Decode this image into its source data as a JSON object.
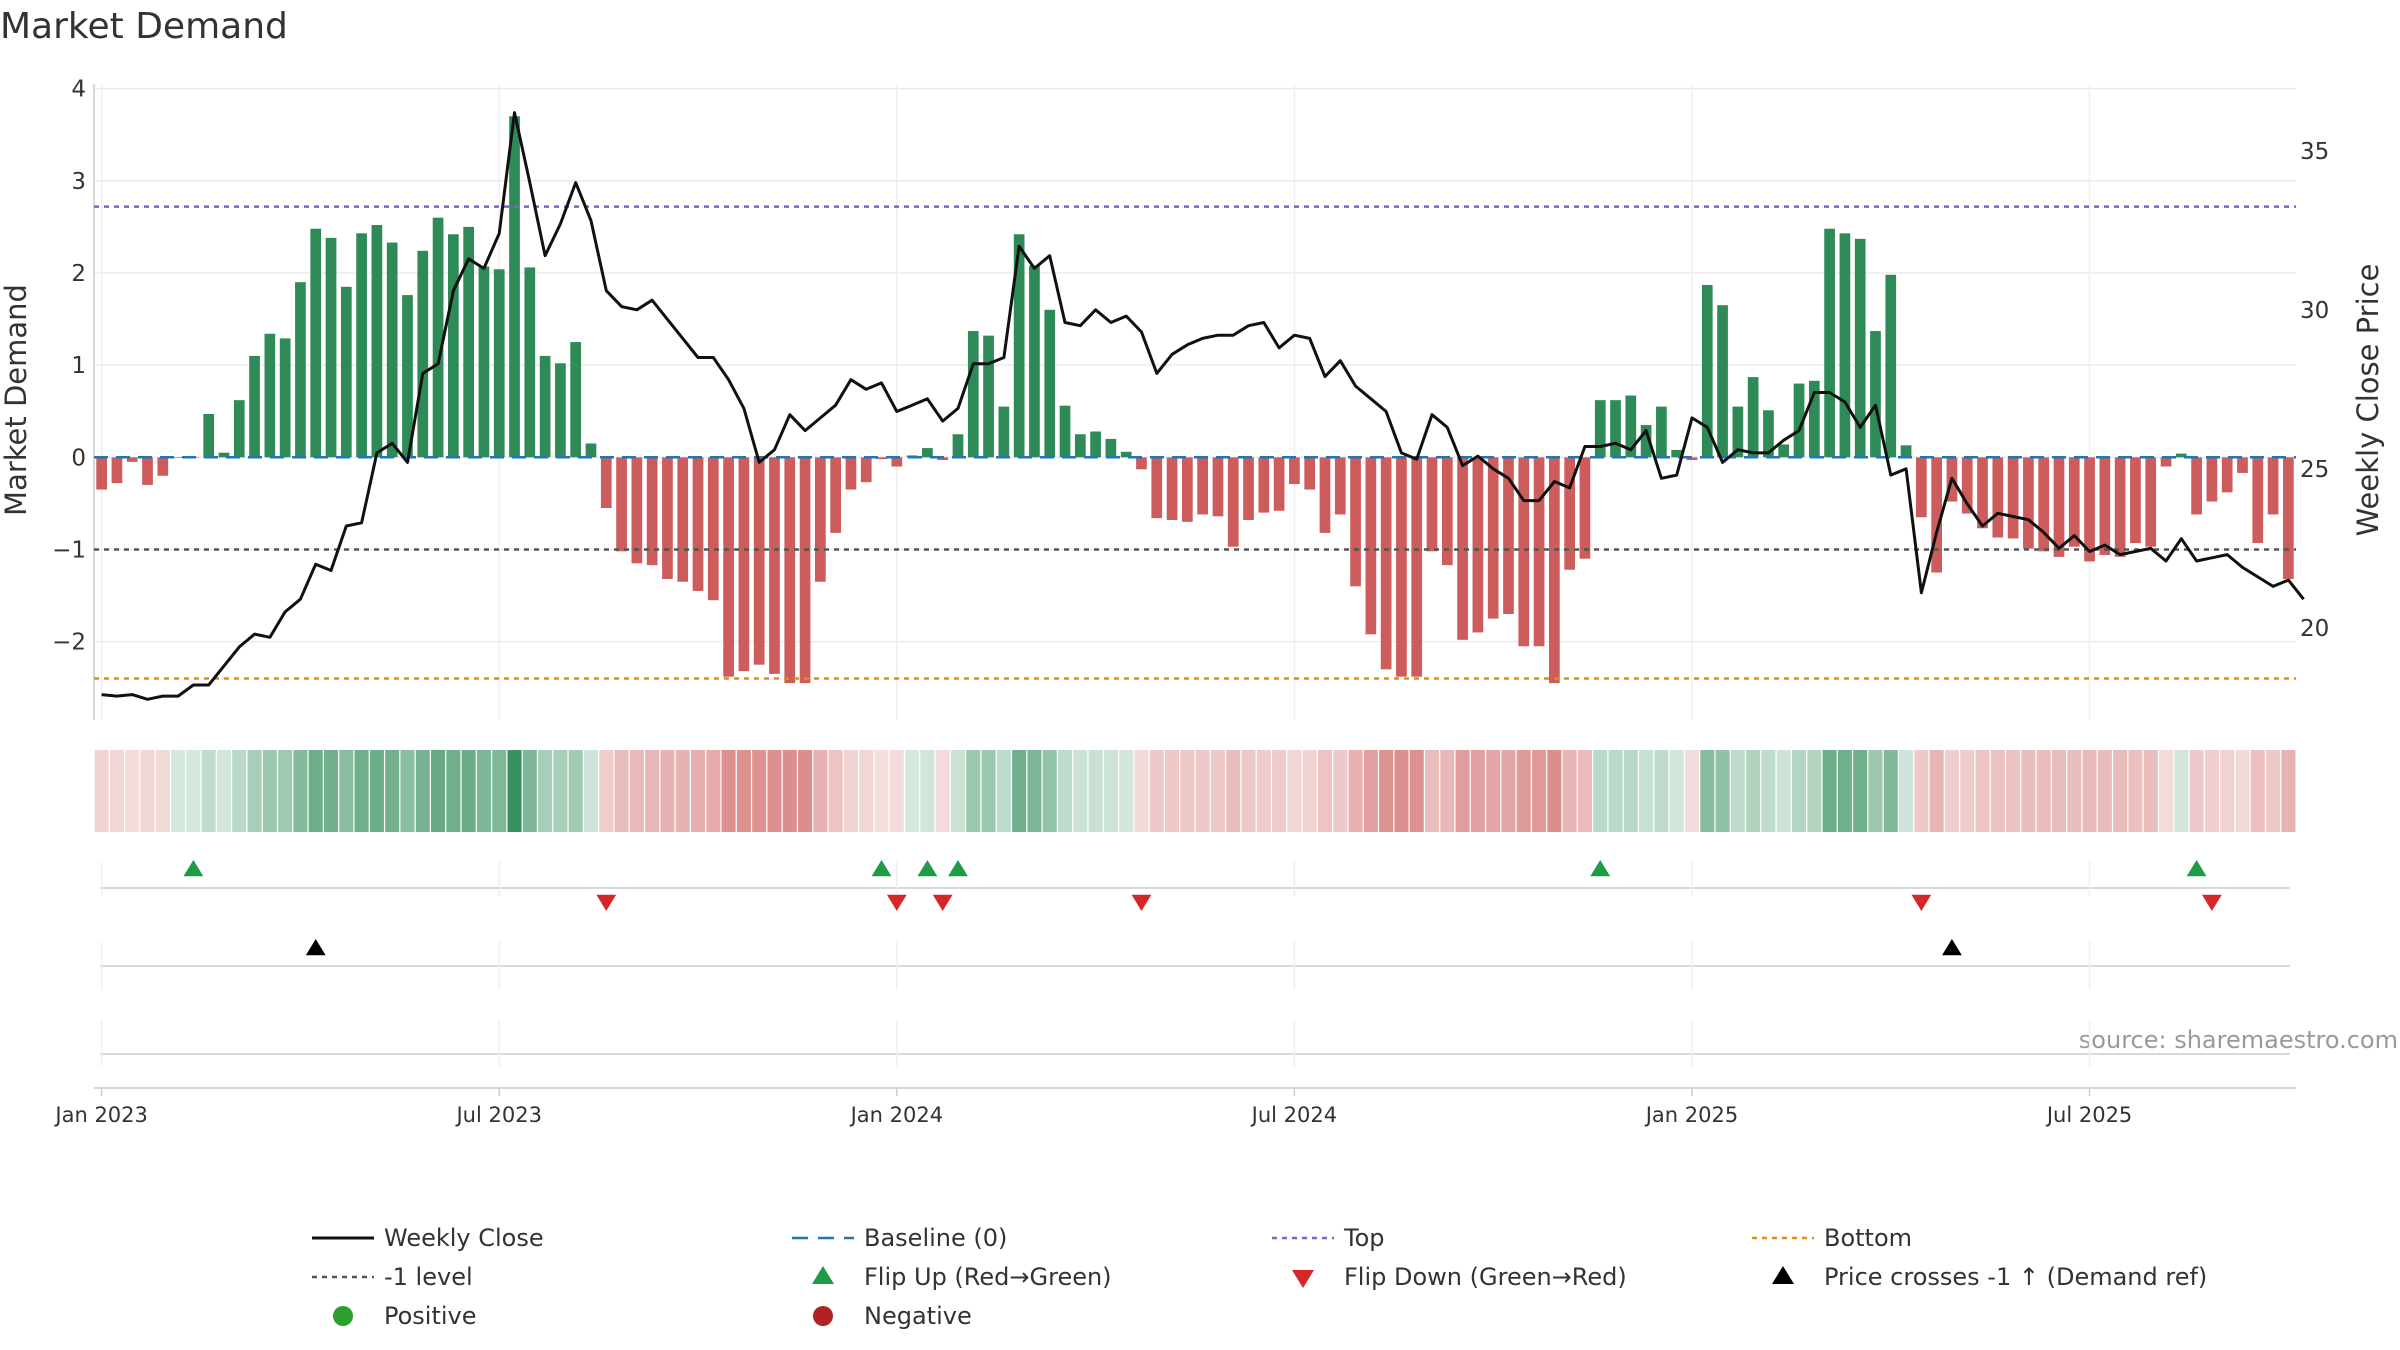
{
  "chart_data": {
    "type": "bar",
    "title": "Market Demand",
    "ylabel": "Market Demand",
    "y2label": "Weekly Close Price",
    "ylim": [
      -2.85,
      4.05
    ],
    "y2lim": [
      17.1,
      37.1
    ],
    "yticks": [
      "−2",
      "−1",
      "0",
      "1",
      "2",
      "3",
      "4"
    ],
    "ytick_values": [
      -2,
      -1,
      0,
      1,
      2,
      3,
      4
    ],
    "y2ticks": [
      "20",
      "25",
      "30",
      "35"
    ],
    "y2tick_values": [
      20,
      25,
      30,
      35
    ],
    "xticks": [
      "Jan 2023",
      "Jul 2023",
      "Jan 2024",
      "Jul 2024",
      "Jan 2025",
      "Jul 2025"
    ],
    "xtick_weeks": [
      0.5,
      26.5,
      52.5,
      78.5,
      104.5,
      130.5
    ],
    "reference_lines": {
      "top": 2.72,
      "bottom": -2.4,
      "minus_one": -1,
      "baseline": 0
    },
    "series": [
      {
        "name": "Market Demand",
        "values": [
          -0.35,
          -0.28,
          -0.05,
          -0.3,
          -0.2,
          0,
          0,
          0.47,
          0.05,
          0.62,
          1.1,
          1.34,
          1.29,
          1.9,
          2.48,
          2.38,
          1.85,
          2.43,
          2.52,
          2.33,
          1.76,
          2.24,
          2.6,
          2.42,
          2.5,
          2.07,
          2.04,
          3.7,
          2.06,
          1.1,
          1.02,
          1.25,
          0.15,
          -0.55,
          -1.02,
          -1.15,
          -1.17,
          -1.32,
          -1.35,
          -1.45,
          -1.55,
          -2.38,
          -2.32,
          -2.25,
          -2.35,
          -2.45,
          -2.45,
          -1.35,
          -0.82,
          -0.35,
          -0.27,
          -0.02,
          -0.1,
          0.02,
          0.1,
          -0.03,
          0.25,
          1.37,
          1.32,
          0.55,
          2.42,
          2.08,
          1.6,
          0.56,
          0.25,
          0.28,
          0.2,
          0.06,
          -0.13,
          -0.66,
          -0.68,
          -0.7,
          -0.62,
          -0.64,
          -0.97,
          -0.68,
          -0.6,
          -0.58,
          -0.29,
          -0.35,
          -0.82,
          -0.62,
          -1.4,
          -1.92,
          -2.3,
          -2.38,
          -2.38,
          -1.02,
          -1.17,
          -1.98,
          -1.9,
          -1.75,
          -1.7,
          -2.05,
          -2.05,
          -2.45,
          -1.22,
          -1.1,
          0.62,
          0.62,
          0.67,
          0.35,
          0.55,
          0.08,
          -0.03,
          1.87,
          1.65,
          0.55,
          0.87,
          0.51,
          0.14,
          0.8,
          0.83,
          2.48,
          2.43,
          2.37,
          1.37,
          1.98,
          0.13,
          -0.65,
          -1.25,
          -0.48,
          -0.61,
          -0.77,
          -0.87,
          -0.88,
          -0.99,
          -1.02,
          -1.08,
          -0.97,
          -1.13,
          -1.06,
          -1.08,
          -0.93,
          -0.97,
          -0.1,
          0.04,
          -0.62,
          -0.48,
          -0.38,
          -0.17,
          -0.93,
          -0.62,
          -1.32
        ]
      },
      {
        "name": "Weekly Close",
        "values": [
          17.9,
          17.85,
          17.9,
          17.75,
          17.85,
          17.85,
          18.2,
          18.2,
          18.8,
          19.4,
          19.8,
          19.7,
          20.5,
          20.9,
          22.0,
          21.8,
          23.2,
          23.3,
          25.5,
          25.8,
          25.2,
          28.0,
          28.3,
          30.6,
          31.6,
          31.3,
          32.4,
          36.2,
          34.0,
          31.7,
          32.7,
          34.0,
          32.8,
          30.6,
          30.1,
          30.0,
          30.3,
          29.7,
          29.1,
          28.5,
          28.5,
          27.8,
          26.9,
          25.2,
          25.6,
          26.7,
          26.2,
          26.6,
          27.0,
          27.8,
          27.5,
          27.7,
          26.8,
          27.0,
          27.2,
          26.5,
          26.9,
          28.3,
          28.3,
          28.5,
          32.0,
          31.3,
          31.7,
          29.6,
          29.5,
          30.0,
          29.6,
          29.8,
          29.3,
          28.0,
          28.6,
          28.9,
          29.1,
          29.2,
          29.2,
          29.5,
          29.6,
          28.8,
          29.2,
          29.1,
          27.9,
          28.4,
          27.6,
          27.2,
          26.8,
          25.5,
          25.3,
          26.7,
          26.3,
          25.1,
          25.4,
          25.0,
          24.7,
          24.0,
          24.0,
          24.6,
          24.4,
          25.7,
          25.7,
          25.8,
          25.6,
          26.2,
          24.7,
          24.8,
          26.6,
          26.3,
          25.2,
          25.6,
          25.5,
          25.5,
          25.9,
          26.2,
          27.4,
          27.4,
          27.1,
          26.3,
          27.0,
          24.8,
          25.0,
          21.1,
          23.0,
          24.7,
          23.9,
          23.2,
          23.6,
          23.5,
          23.4,
          23.0,
          22.5,
          22.9,
          22.4,
          22.6,
          22.3,
          22.4,
          22.5,
          22.1,
          22.8,
          22.1,
          22.2,
          22.3,
          21.9,
          21.6,
          21.3,
          21.5,
          20.9
        ]
      }
    ],
    "legend": [
      {
        "key": "weekly_close",
        "label": "Weekly Close"
      },
      {
        "key": "baseline",
        "label": "Baseline (0)"
      },
      {
        "key": "top",
        "label": "Top"
      },
      {
        "key": "bottom",
        "label": "Bottom"
      },
      {
        "key": "minus_one",
        "label": "-1 level"
      },
      {
        "key": "flip_up",
        "label": "Flip Up (Red→Green)"
      },
      {
        "key": "flip_down",
        "label": "Flip Down (Green→Red)"
      },
      {
        "key": "price_cross",
        "label": "Price crosses -1 ↑ (Demand ref)"
      },
      {
        "key": "positive",
        "label": "Positive"
      },
      {
        "key": "negative",
        "label": "Negative"
      }
    ],
    "flip_up_weeks": [
      6,
      51,
      54,
      56,
      98,
      137
    ],
    "flip_down_weeks": [
      33,
      52,
      55,
      68,
      119,
      138
    ],
    "price_cross_weeks": [
      14,
      121
    ],
    "source": "source: sharemaestro.com"
  },
  "colors": {
    "positive": "#2e8b57",
    "negative": "#cd5c5c",
    "price_line": "#111111",
    "baseline": "#1f77b4",
    "top": "#6a6ad0",
    "bottom": "#e08c1a",
    "minus_one": "#555555",
    "flip_up": "#1e9b46",
    "flip_down": "#d62728",
    "price_cross": "#000000",
    "positive_dot": "#2ca02c",
    "negative_dot": "#b22222"
  }
}
